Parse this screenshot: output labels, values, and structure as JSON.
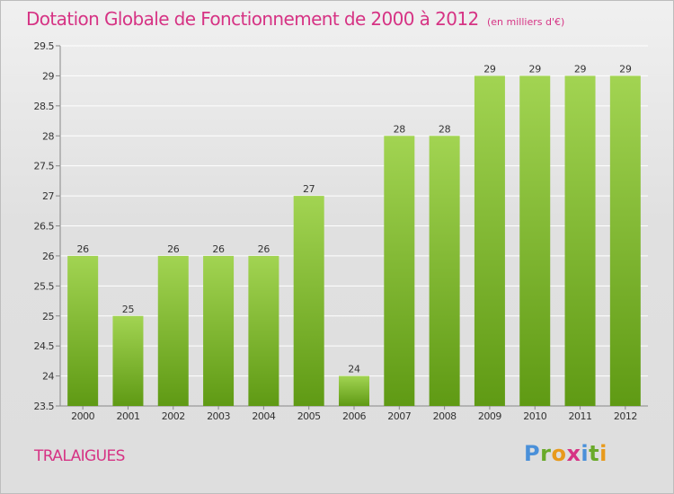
{
  "title": "Dotation Globale de Fonctionnement de 2000 à 2012",
  "unit_note": "(en milliers d'€)",
  "commune": "TRALAIGUES",
  "logo": {
    "letters": [
      "P",
      "r",
      "o",
      "x",
      "i",
      "t",
      "i"
    ],
    "colors": [
      "#4a90d9",
      "#6aaa2a",
      "#e89a1c",
      "#d63384",
      "#4a90d9",
      "#6aaa2a",
      "#e89a1c"
    ]
  },
  "colors": {
    "bar_top": "#a2d452",
    "bar_bottom": "#5f9a14",
    "title": "#d63384",
    "grid": "#ffffff"
  },
  "chart_data": {
    "type": "bar",
    "title": "Dotation Globale de Fonctionnement de 2000 à 2012",
    "subtitle": "(en milliers d'€)",
    "categories": [
      "2000",
      "2001",
      "2002",
      "2003",
      "2004",
      "2005",
      "2006",
      "2007",
      "2008",
      "2009",
      "2010",
      "2011",
      "2012"
    ],
    "values": [
      26,
      25,
      26,
      26,
      26,
      27,
      24,
      28,
      28,
      29,
      29,
      29,
      29
    ],
    "data_labels": [
      "26",
      "25",
      "26",
      "26",
      "26",
      "27",
      "24",
      "28",
      "28",
      "29",
      "29",
      "29",
      "29"
    ],
    "ylim": [
      23.5,
      29.5
    ],
    "yticks": [
      "23.5",
      "24",
      "24.5",
      "25",
      "25.5",
      "26",
      "26.5",
      "27",
      "27.5",
      "28",
      "28.5",
      "29",
      "29.5"
    ],
    "xlabel": "",
    "ylabel": "",
    "grid": true,
    "legend": "none"
  }
}
